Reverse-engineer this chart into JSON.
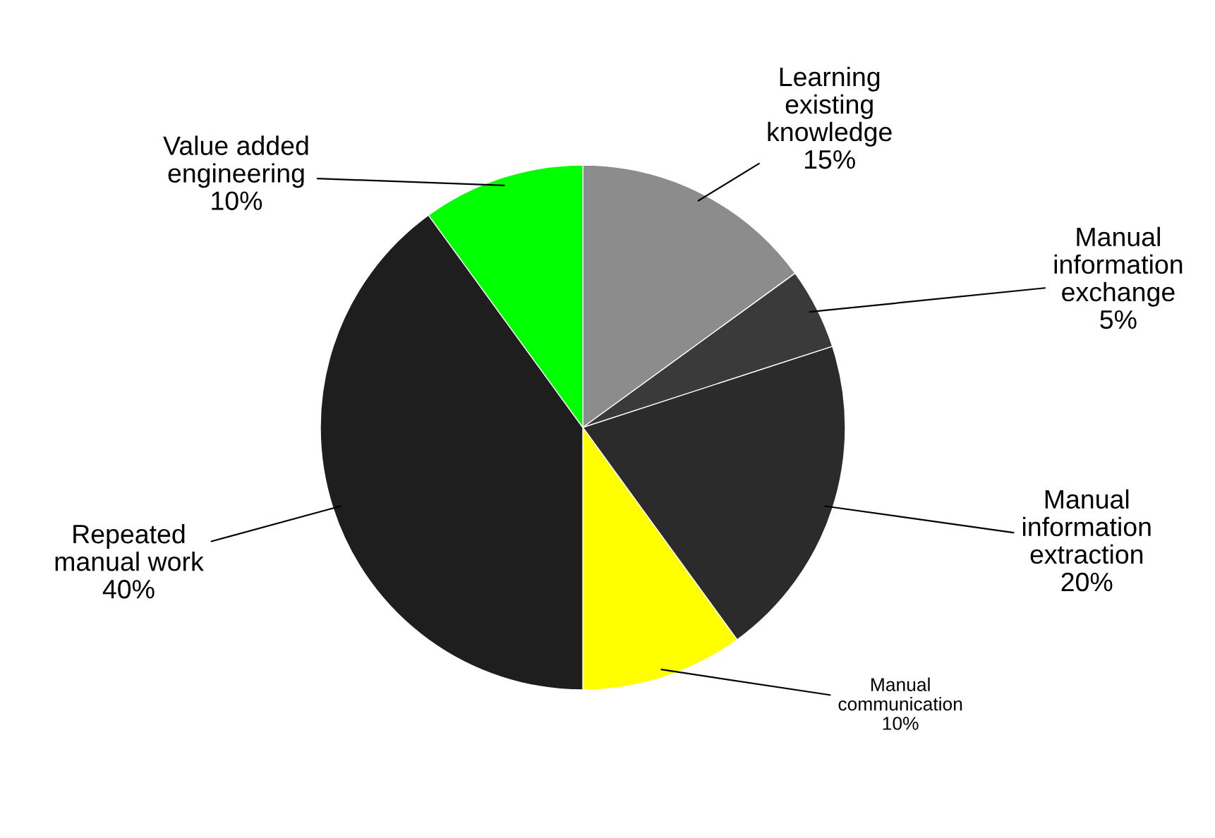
{
  "chart_data": {
    "type": "pie",
    "categories": [
      "Learning\nexisting\nknowledge",
      "Manual\ninformation\nexchange",
      "Manual\ninformation\nextraction",
      "Manual\ncommunication",
      "Repeated\nmanual work",
      "Value added\nengineering"
    ],
    "values": [
      15,
      5,
      20,
      10,
      40,
      10
    ],
    "value_labels": [
      "15%",
      "5%",
      "20%",
      "10%",
      "40%",
      "10%"
    ],
    "colors": [
      "#8c8c8c",
      "#3a3a3a",
      "#2b2b2b",
      "#ffff00",
      "#1e1e1e",
      "#00ff00"
    ]
  }
}
